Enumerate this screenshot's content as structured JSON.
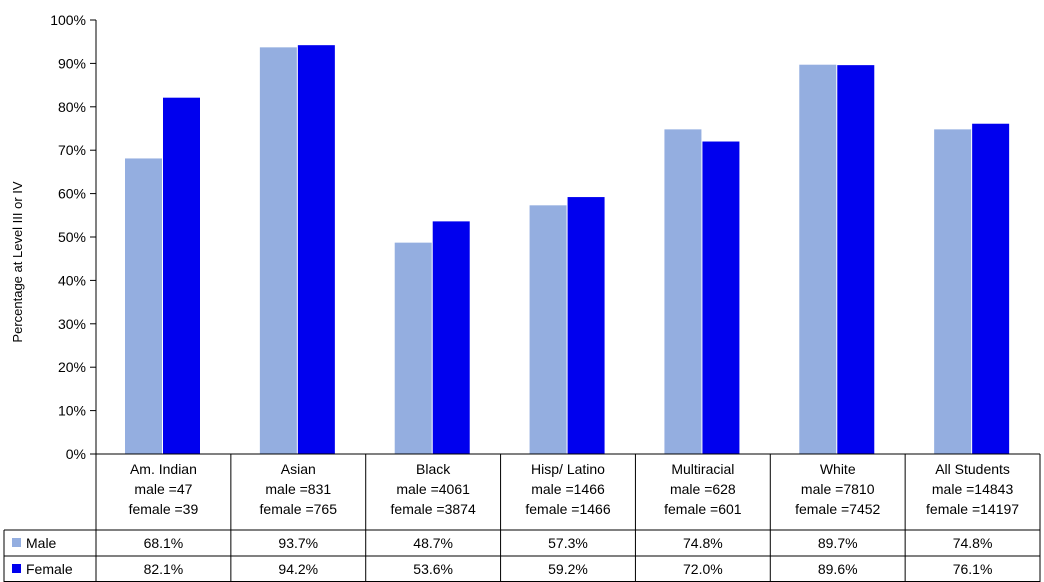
{
  "chart_data": {
    "type": "bar",
    "ylabel": "Percentage at Level III or IV",
    "ylim": [
      0,
      100
    ],
    "yticks": [
      "0%",
      "10%",
      "20%",
      "30%",
      "40%",
      "50%",
      "60%",
      "70%",
      "80%",
      "90%",
      "100%"
    ],
    "grid": false,
    "legend": "table-left",
    "categories": [
      {
        "name": "Am. Indian",
        "line2": "male =47",
        "line3": "female =39"
      },
      {
        "name": "Asian",
        "line2": "male =831",
        "line3": "female  =765"
      },
      {
        "name": "Black",
        "line2": "male =4061",
        "line3": "female =3874"
      },
      {
        "name": "Hisp/ Latino",
        "line2": "male =1466",
        "line3": "female =1466"
      },
      {
        "name": "Multiracial",
        "line2": "male =628",
        "line3": "female =601"
      },
      {
        "name": "White",
        "line2": "male =7810",
        "line3": "female =7452"
      },
      {
        "name": "All Students",
        "line2": "male =14843",
        "line3": "female =14197"
      }
    ],
    "series": [
      {
        "name": "Male",
        "color": "#94aee0",
        "values": [
          68.1,
          93.7,
          48.7,
          57.3,
          74.8,
          89.7,
          74.8
        ],
        "labels": [
          "68.1%",
          "93.7%",
          "48.7%",
          "57.3%",
          "74.8%",
          "89.7%",
          "74.8%"
        ]
      },
      {
        "name": "Female",
        "color": "#0000ee",
        "values": [
          82.1,
          94.2,
          53.6,
          59.2,
          72.0,
          89.6,
          76.1
        ],
        "labels": [
          "82.1%",
          "94.2%",
          "53.6%",
          "59.2%",
          "72.0%",
          "89.6%",
          "76.1%"
        ]
      }
    ]
  }
}
